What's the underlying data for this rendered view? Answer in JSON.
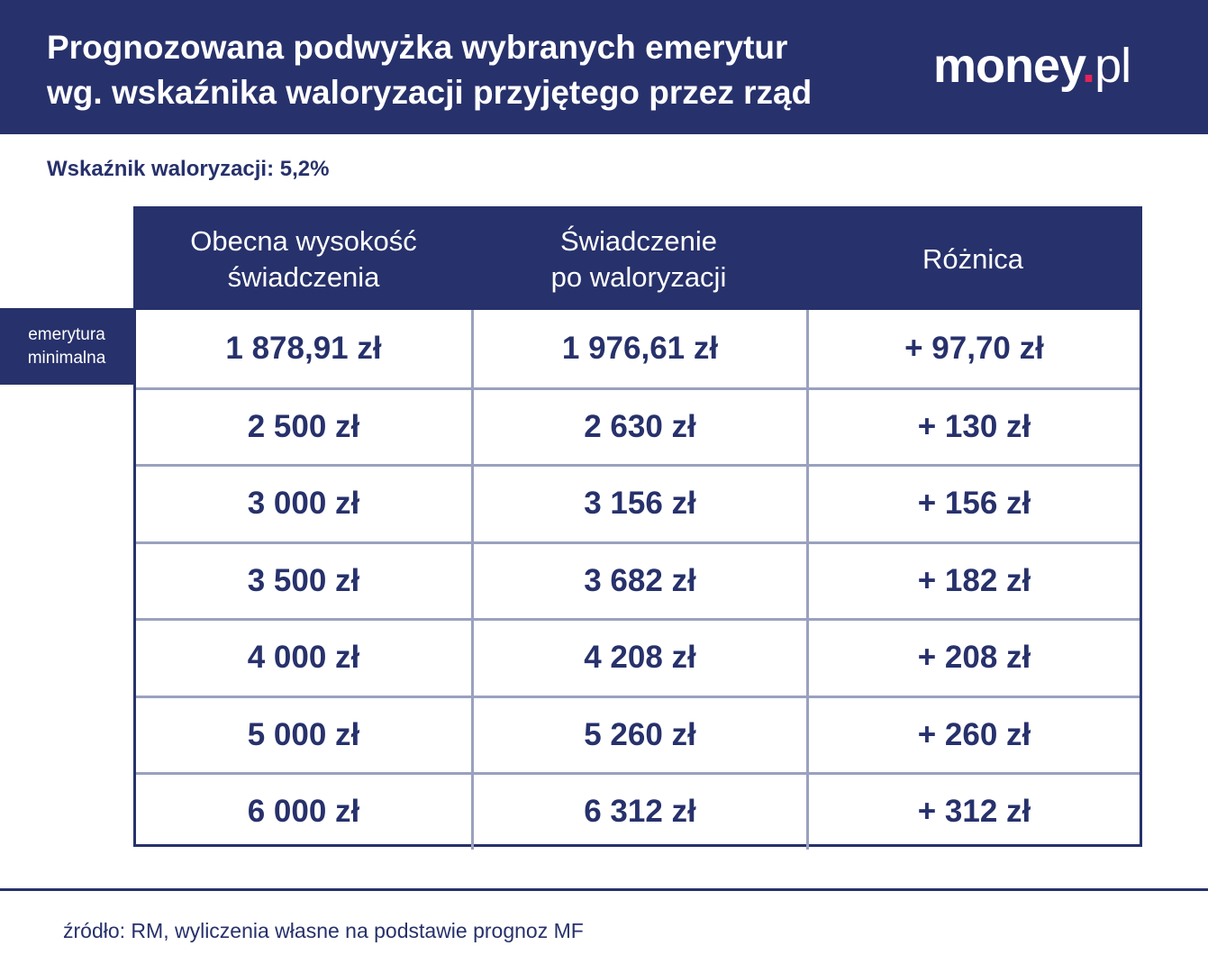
{
  "header": {
    "title": "Prognozowana podwyżka wybranych emerytur\nwg. wskaźnika waloryzacji przyjętego przez rząd",
    "logo": {
      "main": "money",
      "dot": ".",
      "tld": "pl"
    }
  },
  "subtitle": "Wskaźnik waloryzacji: 5,2%",
  "row_label": "emerytura\nminimalna",
  "footer": {
    "source": "źródło: RM, wyliczenia własne na podstawie prognoz MF"
  },
  "colors": {
    "navy": "#27316b",
    "grid": "#9aa1bf",
    "accent": "#e3245a"
  },
  "chart_data": {
    "type": "table",
    "columns": [
      "Obecna wysokość\nświadczenia",
      "Świadczenie\npo waloryzacji",
      "Różnica"
    ],
    "rows": [
      [
        "1 878,91 zł",
        "1 976,61 zł",
        "+ 97,70 zł"
      ],
      [
        "2 500 zł",
        "2 630 zł",
        "+ 130 zł"
      ],
      [
        "3 000 zł",
        "3 156 zł",
        "+ 156 zł"
      ],
      [
        "3 500 zł",
        "3 682 zł",
        "+ 182 zł"
      ],
      [
        "4 000 zł",
        "4 208 zł",
        "+ 208 zł"
      ],
      [
        "5 000 zł",
        "5 260 zł",
        "+ 260 zł"
      ],
      [
        "6 000 zł",
        "6 312 zł",
        "+ 312 zł"
      ]
    ]
  }
}
